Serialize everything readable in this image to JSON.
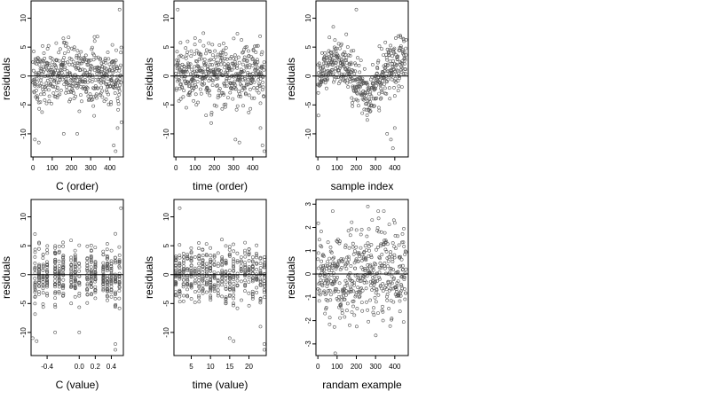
{
  "chart_data": [
    {
      "type": "scatter",
      "xlabel": "C (order)",
      "ylabel": "residuals",
      "xlim": [
        -10,
        470
      ],
      "ylim": [
        -14,
        13
      ],
      "xticks": [
        0,
        100,
        200,
        300,
        400
      ],
      "yticks": [
        -10,
        -5,
        0,
        5,
        10
      ],
      "hline": 0,
      "distribution": "flat",
      "point_count": 460,
      "outliers": [
        [
          10,
          -11
        ],
        [
          30,
          -11.5
        ],
        [
          160,
          -10
        ],
        [
          230,
          -10
        ],
        [
          420,
          -12
        ],
        [
          430,
          -13
        ],
        [
          440,
          -9
        ],
        [
          450,
          11.5
        ],
        [
          460,
          -8
        ]
      ]
    },
    {
      "type": "scatter",
      "xlabel": "time (order)",
      "ylabel": "residuals",
      "xlim": [
        -10,
        470
      ],
      "ylim": [
        -14,
        13
      ],
      "xticks": [
        0,
        100,
        200,
        300,
        400
      ],
      "yticks": [
        -10,
        -5,
        0,
        5,
        10
      ],
      "hline": 0,
      "distribution": "flat",
      "point_count": 460,
      "outliers": [
        [
          10,
          11.5
        ],
        [
          310,
          -11
        ],
        [
          330,
          -11.5
        ],
        [
          450,
          -12
        ],
        [
          460,
          -13
        ],
        [
          440,
          -9
        ]
      ]
    },
    {
      "type": "scatter",
      "xlabel": "sample index",
      "ylabel": "residuals",
      "xlim": [
        -10,
        470
      ],
      "ylim": [
        -14,
        13
      ],
      "xticks": [
        0,
        100,
        200,
        300,
        400
      ],
      "yticks": [
        -10,
        -5,
        0,
        5,
        10
      ],
      "hline": 0,
      "distribution": "wavy",
      "point_count": 460,
      "outliers": [
        [
          200,
          11.5
        ],
        [
          80,
          8.5
        ],
        [
          360,
          -10
        ],
        [
          380,
          -11
        ],
        [
          390,
          -12.5
        ],
        [
          400,
          -9
        ]
      ]
    },
    {
      "type": "scatter",
      "xlabel": "C (value)",
      "ylabel": "residuals",
      "xlim": [
        -0.6,
        0.55
      ],
      "ylim": [
        -14,
        13
      ],
      "xticks": [
        -0.4,
        0.0,
        0.2,
        0.4
      ],
      "yticks": [
        -10,
        -5,
        0,
        5,
        10
      ],
      "hline": 0,
      "distribution": "columns",
      "columns": [
        -0.55,
        -0.5,
        -0.45,
        -0.4,
        -0.3,
        -0.25,
        -0.2,
        -0.1,
        -0.05,
        0.0,
        0.1,
        0.15,
        0.2,
        0.3,
        0.35,
        0.4,
        0.45,
        0.5
      ],
      "point_count": 460,
      "outliers": [
        [
          -0.58,
          -11
        ],
        [
          -0.53,
          -11.5
        ],
        [
          -0.3,
          -10
        ],
        [
          0.0,
          -10
        ],
        [
          0.45,
          -12
        ],
        [
          0.45,
          -13
        ],
        [
          0.52,
          11.5
        ]
      ]
    },
    {
      "type": "scatter",
      "xlabel": "time (value)",
      "ylabel": "residuals",
      "xlim": [
        0.5,
        24.5
      ],
      "ylim": [
        -14,
        13
      ],
      "xticks": [
        5,
        10,
        15,
        20
      ],
      "yticks": [
        -10,
        -5,
        0,
        5,
        10
      ],
      "hline": 0,
      "distribution": "columns",
      "columns": [
        1,
        2,
        3,
        4,
        5,
        6,
        7,
        8,
        9,
        10,
        11,
        12,
        13,
        14,
        15,
        16,
        17,
        18,
        19,
        20,
        21,
        22,
        23,
        24
      ],
      "point_count": 460,
      "outliers": [
        [
          2,
          11.5
        ],
        [
          15,
          -11
        ],
        [
          16,
          -11.5
        ],
        [
          24,
          -12
        ],
        [
          24,
          -13
        ],
        [
          23,
          -9
        ]
      ]
    },
    {
      "type": "scatter",
      "xlabel": "randam example",
      "ylabel": "residuals",
      "xlim": [
        -10,
        470
      ],
      "ylim": [
        -3.5,
        3.2
      ],
      "xticks": [
        0,
        100,
        200,
        300,
        400
      ],
      "yticks": [
        -3,
        -2,
        -1,
        0,
        1,
        2,
        3
      ],
      "hline": 0,
      "distribution": "normal",
      "point_count": 460,
      "outliers": [
        [
          90,
          -3.4
        ],
        [
          260,
          2.9
        ]
      ]
    }
  ]
}
